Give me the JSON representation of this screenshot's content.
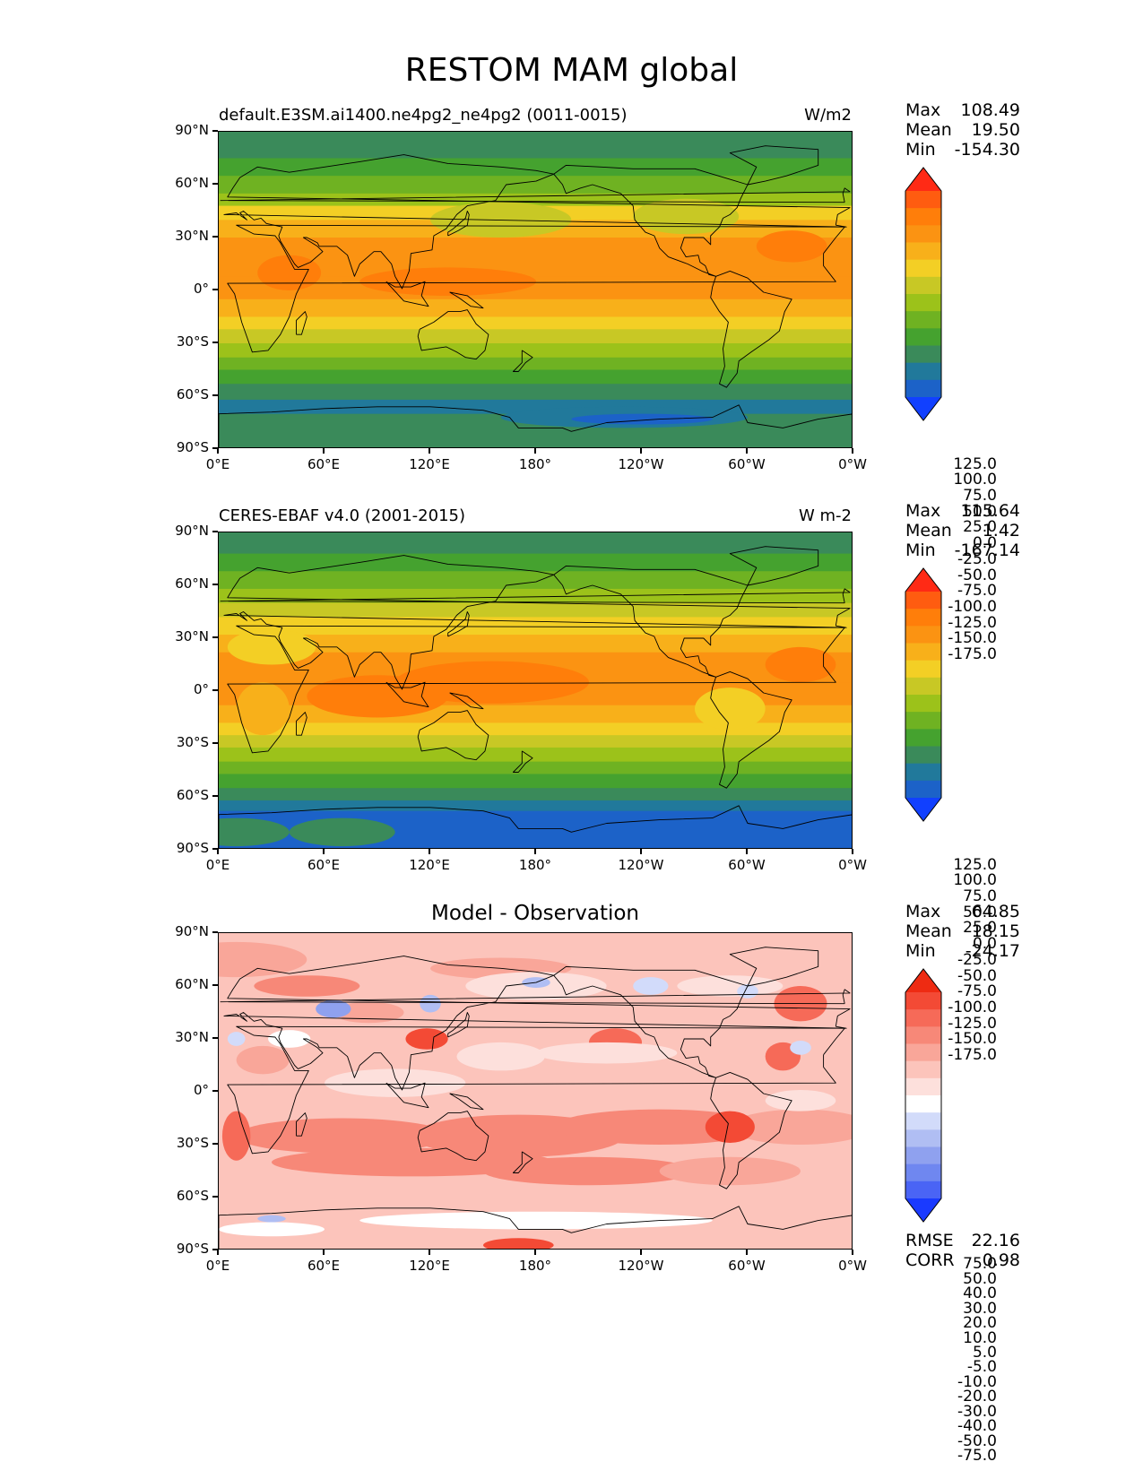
{
  "title": "RESTOM MAM global",
  "panels": [
    {
      "title_left": "default.E3SM.ai1400.ne4pg2_ne4pg2 (0011-0015)",
      "units": "W/m2",
      "stats": {
        "max_label": "Max",
        "max": "108.49",
        "mean_label": "Mean",
        "mean": "19.50",
        "min_label": "Min",
        "min": "-154.30"
      },
      "colorbar": [
        "125.0",
        "100.0",
        "75.0",
        "50.0",
        "25.0",
        "0.0",
        "-25.0",
        "-50.0",
        "-75.0",
        "-100.0",
        "-125.0",
        "-150.0",
        "-175.0"
      ]
    },
    {
      "title_left": "CERES-EBAF v4.0 (2001-2015)",
      "units": "W m-2",
      "stats": {
        "max_label": "Max",
        "max": "115.64",
        "mean_label": "Mean",
        "mean": "1.42",
        "min_label": "Min",
        "min": "-167.14"
      },
      "colorbar": [
        "125.0",
        "100.0",
        "75.0",
        "50.0",
        "25.0",
        "0.0",
        "-25.0",
        "-50.0",
        "-75.0",
        "-100.0",
        "-125.0",
        "-150.0",
        "-175.0"
      ]
    },
    {
      "title_center": "Model - Observation",
      "stats": {
        "max_label": "Max",
        "max": "64.85",
        "mean_label": "Mean",
        "mean": "18.15",
        "min_label": "Min",
        "min": "-24.17"
      },
      "colorbar": [
        "75.0",
        "50.0",
        "40.0",
        "30.0",
        "20.0",
        "10.0",
        "5.0",
        "-5.0",
        "-10.0",
        "-20.0",
        "-30.0",
        "-40.0",
        "-50.0",
        "-75.0"
      ],
      "metrics": {
        "rmse_label": "RMSE",
        "rmse": "22.16",
        "corr_label": "CORR",
        "corr": "0.98"
      }
    }
  ],
  "axes": {
    "lat_labels": [
      "90°N",
      "60°N",
      "30°N",
      "0°",
      "30°S",
      "60°S",
      "90°S"
    ],
    "lon_labels": [
      "0°E",
      "60°E",
      "120°E",
      "180°",
      "120°W",
      "60°W",
      "0°W"
    ]
  },
  "colors": {
    "abs_scale": [
      "#1140ff",
      "#1c62c8",
      "#21799b",
      "#3a8a5a",
      "#45a22f",
      "#6fb222",
      "#9cc21a",
      "#c8c825",
      "#f3cf25",
      "#f8b01a",
      "#fb9312",
      "#ff7e0a",
      "#ff5c10",
      "#ff2a15"
    ],
    "diff_scale": [
      "#1a3aff",
      "#4a64f5",
      "#6f87f0",
      "#8fa1ef",
      "#b0bef3",
      "#d2dbfa",
      "#ffffff",
      "#fde0dc",
      "#fcc4bb",
      "#f9a699",
      "#f78878",
      "#f66a58",
      "#f34a35",
      "#ee2b12"
    ]
  }
}
